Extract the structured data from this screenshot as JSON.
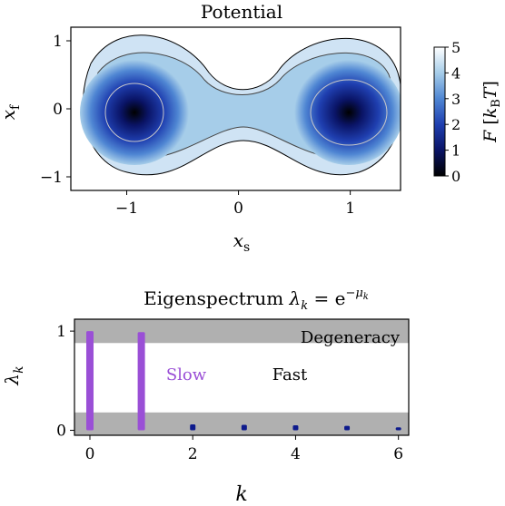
{
  "chart_data": [
    {
      "type": "heatmap",
      "title": "Potential",
      "xlabel_symbol": "x",
      "xlabel_sub": "s",
      "ylabel_symbol": "x",
      "ylabel_sub": "f",
      "xlim": [
        -1.5,
        1.45
      ],
      "ylim": [
        -1.2,
        1.2
      ],
      "xticks": [
        -1,
        0,
        1
      ],
      "xtick_labels": [
        "−1",
        "0",
        "1"
      ],
      "yticks": [
        -1,
        0,
        1
      ],
      "ytick_labels": [
        "−1",
        "0",
        "1"
      ],
      "wells": [
        {
          "x": -0.97,
          "y": 0.0
        },
        {
          "x": 0.97,
          "y": 0.0
        }
      ],
      "colorbar": {
        "label_prefix": "F",
        "label_unit_main": "k",
        "label_unit_sub": "B",
        "label_unit_tail": "T",
        "min": 0,
        "max": 5,
        "ticks": [
          0,
          1,
          2,
          3,
          4,
          5
        ],
        "tick_labels": [
          "0",
          "1",
          "2",
          "3",
          "4",
          "5"
        ],
        "colormap": [
          "#000000",
          "#0a1466",
          "#1f3fb0",
          "#4f86d3",
          "#a6cde9",
          "#ffffff"
        ]
      }
    },
    {
      "type": "bar",
      "title_prefix": "Eigenspectrum ",
      "title_formula": "λk = e−μk",
      "xlabel": "k",
      "ylabel": "λk",
      "xlim": [
        -0.3,
        6.2
      ],
      "ylim": [
        -0.05,
        1.12
      ],
      "xticks": [
        0,
        2,
        4,
        6
      ],
      "xtick_labels": [
        "0",
        "2",
        "4",
        "6"
      ],
      "yticks": [
        0,
        1
      ],
      "ytick_labels": [
        "0",
        "1"
      ],
      "categories": [
        0,
        1,
        2,
        3,
        4,
        5,
        6
      ],
      "values": [
        1.0,
        0.99,
        0.06,
        0.055,
        0.05,
        0.045,
        0.03
      ],
      "slow_indices": [
        0,
        1
      ],
      "slow_color": "#9a4fd6",
      "fast_color": "#0d1a8c",
      "bands": [
        {
          "y0": 0.88,
          "y1": 1.12,
          "color": "#b0b0b0"
        },
        {
          "y0": -0.05,
          "y1": 0.18,
          "color": "#b0b0b0"
        }
      ],
      "annotations": {
        "degeneracy": "Degeneracy",
        "slow": "Slow",
        "fast": "Fast"
      }
    }
  ]
}
